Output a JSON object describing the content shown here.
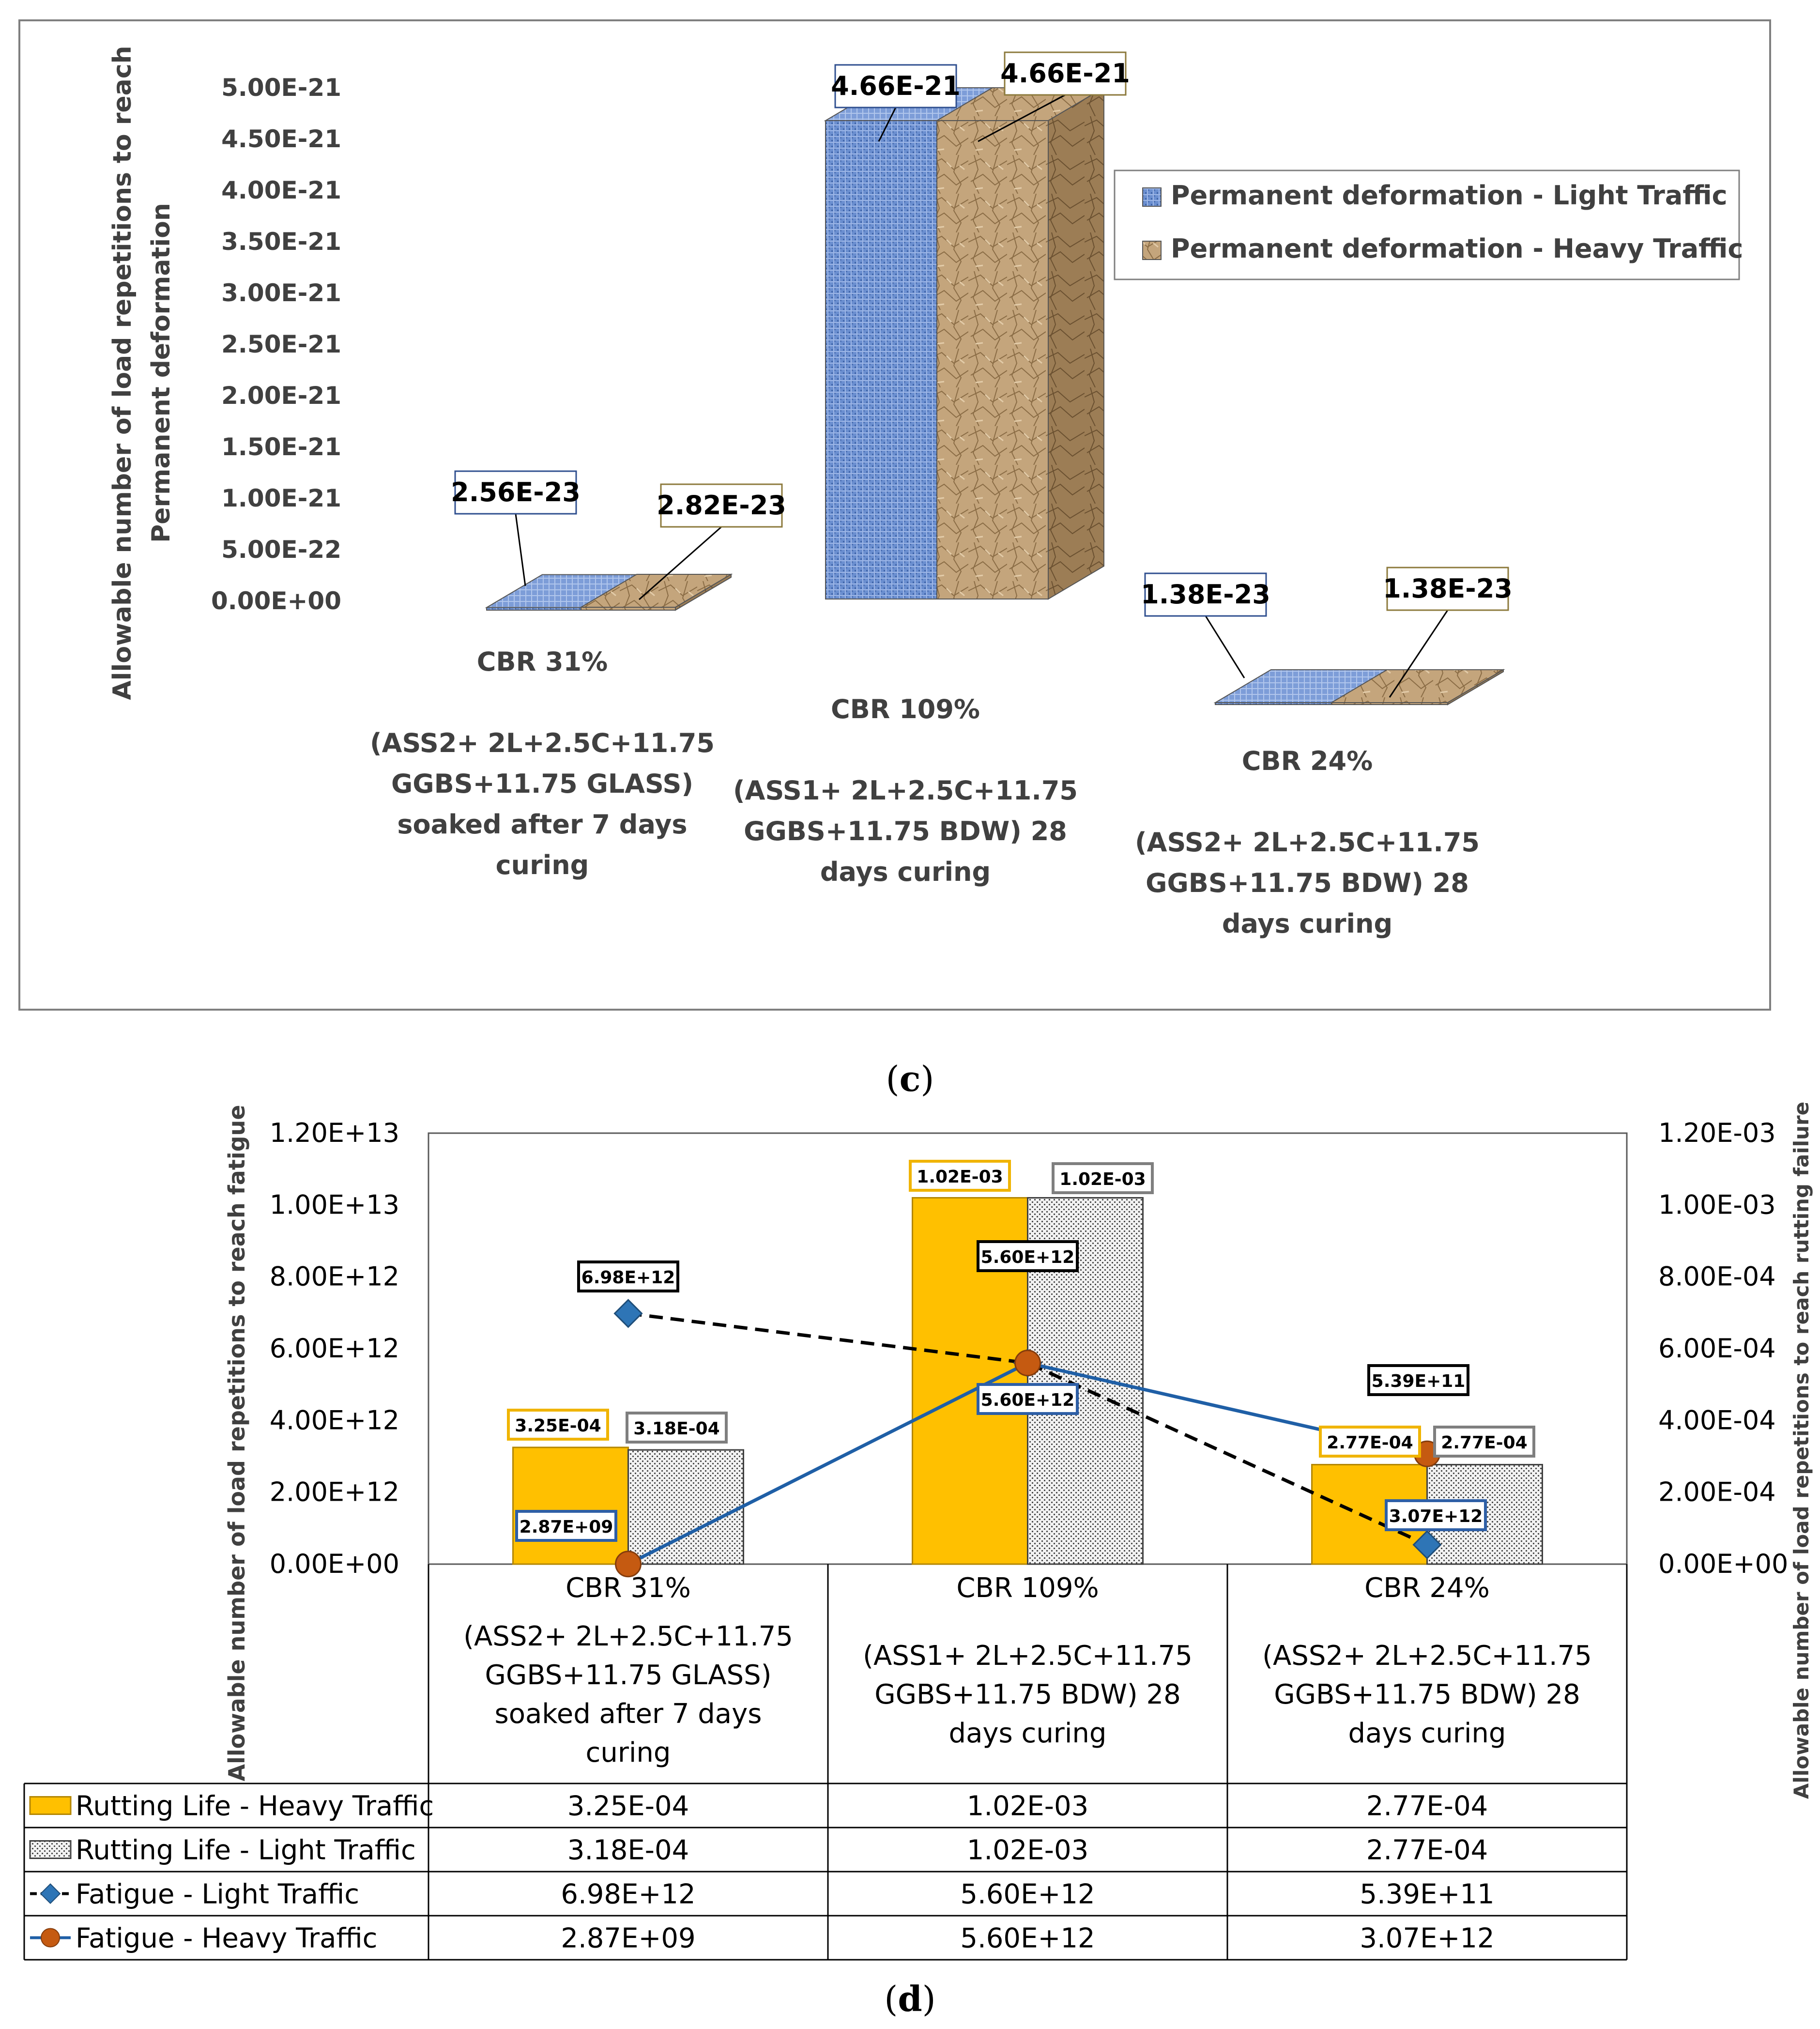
{
  "caption_c": "c",
  "caption_d": "d",
  "chart_data": [
    {
      "type": "bar",
      "subtype": "3d-bar",
      "title": "",
      "ylabel": "Allowable number of load repetitions to reach Permanent deformation",
      "yticks": [
        "5.00E-21",
        "4.50E-21",
        "4.00E-21",
        "3.50E-21",
        "3.00E-21",
        "2.50E-21",
        "2.00E-21",
        "1.50E-21",
        "1.00E-21",
        "5.00E-22",
        "0.00E+00"
      ],
      "ylim": [
        0,
        5e-21
      ],
      "categories": [
        [
          "CBR 31%",
          "",
          "(ASS2+ 2L+2.5C+11.75",
          "GGBS+11.75 GLASS)",
          "soaked after 7 days",
          "curing"
        ],
        [
          "CBR 109%",
          "",
          "(ASS1+ 2L+2.5C+11.75",
          "GGBS+11.75 BDW)  28",
          "days curing"
        ],
        [
          "CBR 24%",
          "",
          "(ASS2+ 2L+2.5C+11.75",
          "GGBS+11.75 BDW)  28",
          "days curing"
        ]
      ],
      "series": [
        {
          "name": "Permanent deformation - Light Traffic",
          "values": [
            2.56e-23,
            4.66e-21,
            1.38e-23
          ],
          "labels": [
            "2.56E-23",
            "4.66E-21",
            "1.38E-23"
          ],
          "color": "#5b84c8"
        },
        {
          "name": "Permanent deformation - Heavy Traffic",
          "values": [
            2.82e-23,
            4.66e-21,
            1.38e-23
          ],
          "labels": [
            "2.82E-23",
            "4.66E-21",
            "1.38E-23"
          ],
          "color": "#b8966a"
        }
      ],
      "legend": "top-right"
    },
    {
      "type": "bar",
      "subtype": "bar-line-combo-with-data-table",
      "title": "",
      "ylabel": "Allowable number of load repetitions to reach fatigue",
      "y2label": "Allowable number of load repetitions to reach rutting failure",
      "yticks": [
        "0.00E+00",
        "2.00E+12",
        "4.00E+12",
        "6.00E+12",
        "8.00E+12",
        "1.00E+13",
        "1.20E+13"
      ],
      "y2ticks": [
        "0.00E+00",
        "2.00E-04",
        "4.00E-04",
        "6.00E-04",
        "8.00E-04",
        "1.00E-03",
        "1.20E-03"
      ],
      "ylim": [
        0,
        12000000000000.0
      ],
      "y2lim": [
        0,
        0.0012
      ],
      "categories": [
        [
          "CBR 31%",
          "",
          "(ASS2+ 2L+2.5C+11.75",
          "GGBS+11.75 GLASS)",
          "soaked after 7 days",
          "curing"
        ],
        [
          "CBR 109%",
          "",
          "(ASS1+ 2L+2.5C+11.75",
          "GGBS+11.75 BDW)  28",
          "days curing"
        ],
        [
          "CBR 24%",
          "",
          "(ASS2+ 2L+2.5C+11.75",
          "GGBS+11.75 BDW)  28",
          "days curing"
        ]
      ],
      "series": [
        {
          "name": "Rutting Life - Heavy Traffic",
          "kind": "bar",
          "axis": "right",
          "values": [
            0.000325,
            0.00102,
            0.000277
          ],
          "labels": [
            "3.25E-04",
            "1.02E-03",
            "2.77E-04"
          ],
          "color": "#ffc000"
        },
        {
          "name": "Rutting Life - Light Traffic",
          "kind": "bar",
          "axis": "right",
          "values": [
            0.000318,
            0.00102,
            0.000277
          ],
          "labels": [
            "3.18E-04",
            "1.02E-03",
            "2.77E-04"
          ],
          "color": "#d9d9d9"
        },
        {
          "name": "Fatigue - Light Traffic",
          "kind": "line",
          "style": "dashed",
          "marker": "diamond",
          "axis": "left",
          "values": [
            6980000000000.0,
            5600000000000.0,
            539000000000.0
          ],
          "labels": [
            "6.98E+12",
            "5.60E+12",
            "5.39E+11"
          ],
          "color": "#2e75b6"
        },
        {
          "name": "Fatigue - Heavy Traffic",
          "kind": "line",
          "style": "solid",
          "marker": "circle",
          "axis": "left",
          "values": [
            2870000000.0,
            5600000000000.0,
            3070000000000.0
          ],
          "labels": [
            "2.87E+09",
            "5.60E+12",
            "3.07E+12"
          ],
          "color": "#c55a11"
        }
      ],
      "legend": "data-table"
    }
  ]
}
